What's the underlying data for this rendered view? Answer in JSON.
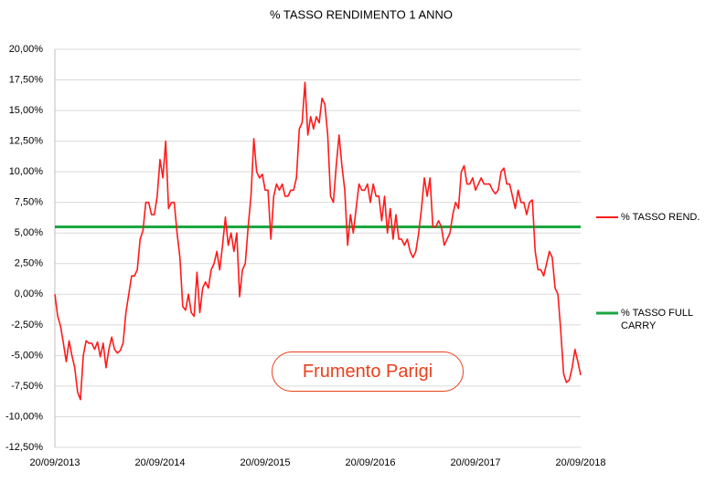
{
  "chart_data": {
    "type": "line",
    "title": "% TASSO RENDIMENTO  1 ANNO",
    "annotation": "Frumento Parigi",
    "categories": [
      "20/09/2013",
      null,
      null,
      null,
      null,
      null,
      null,
      null,
      null,
      null,
      null,
      null,
      null,
      null,
      null,
      null,
      null,
      null,
      null,
      null,
      null,
      null,
      null,
      null,
      null,
      null,
      null,
      null,
      null,
      null,
      null,
      null,
      null,
      null,
      null,
      null,
      null,
      "20/09/2014",
      null,
      null,
      null,
      null,
      null,
      null,
      null,
      null,
      null,
      null,
      null,
      null,
      null,
      null,
      null,
      null,
      null,
      null,
      null,
      null,
      null,
      null,
      null,
      null,
      null,
      null,
      null,
      null,
      null,
      null,
      null,
      null,
      null,
      null,
      null,
      null,
      "20/09/2015",
      null,
      null,
      null,
      null,
      null,
      null,
      null,
      null,
      null,
      null,
      null,
      null,
      null,
      null,
      null,
      null,
      null,
      null,
      null,
      null,
      null,
      null,
      null,
      null,
      null,
      null,
      null,
      null,
      null,
      null,
      null,
      null,
      null,
      null,
      null,
      null,
      "20/09/2016",
      null,
      null,
      null,
      null,
      null,
      null,
      null,
      null,
      null,
      null,
      null,
      null,
      null,
      null,
      null,
      null,
      null,
      null,
      null,
      null,
      null,
      null,
      null,
      null,
      null,
      null,
      null,
      null,
      null,
      null,
      null,
      null,
      null,
      null,
      null,
      null,
      "20/09/2017",
      null,
      null,
      null,
      null,
      null,
      null,
      null,
      null,
      null,
      null,
      null,
      null,
      null,
      null,
      null,
      null,
      null,
      null,
      null,
      null,
      null,
      null,
      null,
      null,
      null,
      null,
      null,
      null,
      null,
      null,
      null,
      null,
      null,
      null,
      null,
      null,
      "20/09/2018"
    ],
    "series": [
      {
        "name": "% TASSO REND.",
        "color": "#ff1a1a",
        "values": [
          0,
          -1.8,
          -2.6,
          -4,
          -5.5,
          -3.8,
          -5,
          -6,
          -8,
          -8.6,
          -5,
          -3.8,
          -4,
          -4,
          -4.5,
          -3.9,
          -5.1,
          -4,
          -6,
          -4.5,
          -3.5,
          -4.5,
          -4.8,
          -4.6,
          -4,
          -1.5,
          0,
          1.5,
          1.5,
          2,
          4.5,
          5.2,
          7.5,
          7.5,
          6.5,
          6.5,
          8,
          11,
          9.5,
          12.5,
          7,
          7.5,
          7.5,
          5,
          3,
          -1,
          -1.3,
          0,
          -1.5,
          -1.8,
          1.8,
          -1.5,
          0.5,
          1,
          0.5,
          2,
          2.5,
          3.5,
          2,
          4,
          6.3,
          4,
          5,
          3.5,
          5,
          -0.2,
          2,
          2.5,
          5.5,
          8,
          12.7,
          10,
          9.5,
          9.8,
          8.5,
          8.5,
          4.5,
          8,
          9,
          8.5,
          9,
          8,
          8,
          8.5,
          8.5,
          9.5,
          13.5,
          14,
          17.3,
          13,
          14.5,
          13.5,
          14.5,
          14,
          16,
          15.5,
          13,
          8,
          7.5,
          10.5,
          13,
          10.5,
          8.5,
          4,
          6.5,
          5,
          7,
          9,
          8.5,
          8.5,
          9,
          7.5,
          9,
          8,
          8,
          6,
          8,
          5,
          7,
          4.5,
          6.5,
          4.5,
          4.5,
          4,
          4.5,
          3.5,
          3,
          3.5,
          5,
          7,
          9.5,
          8,
          9.5,
          5.5,
          5.5,
          6,
          5.5,
          4,
          4.5,
          5,
          6.5,
          7.5,
          7,
          10,
          10.5,
          9,
          9,
          9.5,
          8.5,
          9,
          9.5,
          9,
          9,
          9,
          8.5,
          8.2,
          8.5,
          10,
          10.3,
          9,
          9,
          8,
          7,
          8.5,
          7.5,
          7.5,
          6.5,
          7.5,
          7.7,
          3.5,
          2,
          2,
          1.5,
          2.5,
          3.5,
          3,
          0.5,
          0,
          -3,
          -6.5,
          -7.2,
          -7,
          -6,
          -4.5,
          -5.5,
          -6.6
        ]
      },
      {
        "name": "% TASSO FULL CARRY",
        "color": "#1aa640",
        "values": [
          5.5,
          5.5,
          5.5,
          5.5,
          5.5,
          5.5,
          5.5,
          5.5,
          5.5,
          5.5,
          5.5,
          5.5,
          5.5,
          5.5,
          5.5,
          5.5,
          5.5,
          5.5,
          5.5,
          5.5,
          5.5,
          5.5,
          5.5,
          5.5,
          5.5,
          5.5,
          5.5,
          5.5,
          5.5,
          5.5,
          5.5,
          5.5,
          5.5,
          5.5,
          5.5,
          5.5,
          5.5,
          5.5,
          5.5,
          5.5,
          5.5,
          5.5,
          5.5,
          5.5,
          5.5,
          5.5,
          5.5,
          5.5,
          5.5,
          5.5,
          5.5,
          5.5,
          5.5,
          5.5,
          5.5,
          5.5,
          5.5,
          5.5,
          5.5,
          5.5,
          5.5,
          5.5,
          5.5,
          5.5,
          5.5,
          5.5,
          5.5,
          5.5,
          5.5,
          5.5,
          5.5,
          5.5,
          5.5,
          5.5,
          5.5,
          5.5,
          5.5,
          5.5,
          5.5,
          5.5,
          5.5,
          5.5,
          5.5,
          5.5,
          5.5,
          5.5,
          5.5,
          5.5,
          5.5,
          5.5,
          5.5,
          5.5,
          5.5,
          5.5,
          5.5,
          5.5,
          5.5,
          5.5,
          5.5,
          5.5,
          5.5,
          5.5,
          5.5,
          5.5,
          5.5,
          5.5,
          5.5,
          5.5,
          5.5,
          5.5,
          5.5,
          5.5,
          5.5,
          5.5,
          5.5,
          5.5,
          5.5,
          5.5,
          5.5,
          5.5,
          5.5,
          5.5,
          5.5,
          5.5,
          5.5,
          5.5,
          5.5,
          5.5,
          5.5,
          5.5,
          5.5,
          5.5,
          5.5,
          5.5,
          5.5,
          5.5,
          5.5,
          5.5,
          5.5,
          5.5,
          5.5,
          5.5,
          5.5,
          5.5,
          5.5,
          5.5,
          5.5,
          5.5,
          5.5,
          5.5,
          5.5,
          5.5,
          5.5,
          5.5,
          5.5,
          5.5,
          5.5,
          5.5,
          5.5,
          5.5,
          5.5,
          5.5,
          5.5,
          5.5,
          5.5,
          5.5,
          5.5,
          5.5,
          5.5,
          5.5,
          5.5,
          5.5,
          5.5,
          5.5,
          5.5,
          5.5,
          5.5,
          5.5,
          5.5,
          5.5,
          5.5,
          5.5,
          5.5,
          5.5,
          5.5,
          5.5
        ]
      }
    ],
    "ylim": [
      -12.5,
      20
    ],
    "yticks": [
      {
        "value": -12.5,
        "label": "-12,50%"
      },
      {
        "value": -10,
        "label": "-10,00%"
      },
      {
        "value": -7.5,
        "label": "-7,50%"
      },
      {
        "value": -5,
        "label": "-5,00%"
      },
      {
        "value": -2.5,
        "label": "-2,50%"
      },
      {
        "value": 0,
        "label": "0,00%"
      },
      {
        "value": 2.5,
        "label": "2,50%"
      },
      {
        "value": 5,
        "label": "5,00%"
      },
      {
        "value": 7.5,
        "label": "7,50%"
      },
      {
        "value": 10,
        "label": "10,00%"
      },
      {
        "value": 12.5,
        "label": "12,50%"
      },
      {
        "value": 15,
        "label": "15,00%"
      },
      {
        "value": 17.5,
        "label": "17,50%"
      },
      {
        "value": 20,
        "label": "20,00%"
      }
    ],
    "grid": true
  }
}
